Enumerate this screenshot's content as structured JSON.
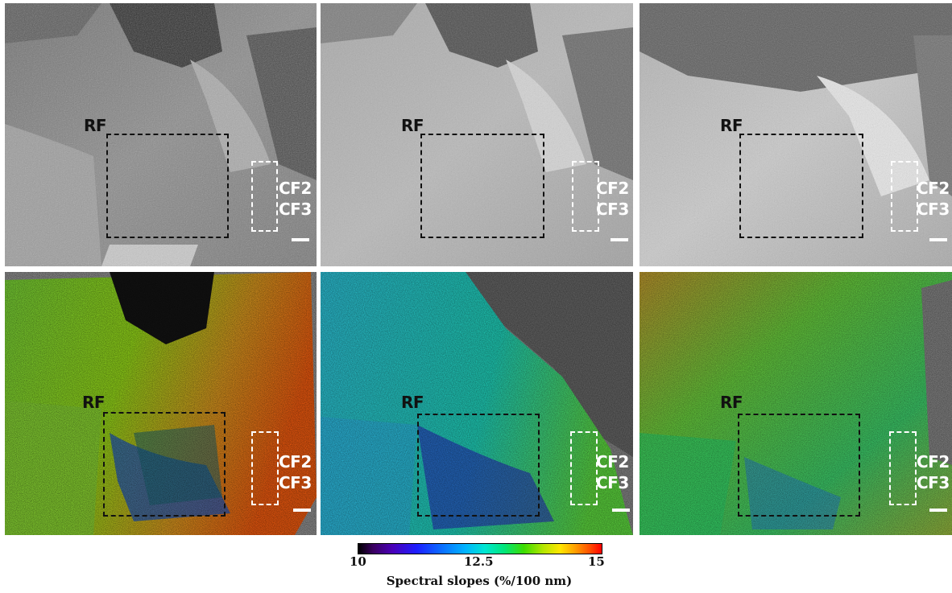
{
  "labels": {
    "rf": "RF",
    "cf2": "CF2",
    "cf3": "CF3"
  },
  "colorbar": {
    "min_label": "10",
    "mid_label": "12.5",
    "max_label": "15",
    "title": "Spectral slopes (%/100 nm)",
    "colors": [
      "#000000",
      "#4a00b8",
      "#1e1eff",
      "#00b4ff",
      "#00e67a",
      "#ffe600",
      "#ff0000"
    ]
  },
  "panels": [
    {
      "id": "top-left",
      "kind": "grayscale"
    },
    {
      "id": "top-middle",
      "kind": "grayscale"
    },
    {
      "id": "top-right",
      "kind": "grayscale"
    },
    {
      "id": "bottom-left",
      "kind": "spectral-slope-map"
    },
    {
      "id": "bottom-middle",
      "kind": "spectral-slope-map"
    },
    {
      "id": "bottom-right",
      "kind": "spectral-slope-map"
    }
  ]
}
